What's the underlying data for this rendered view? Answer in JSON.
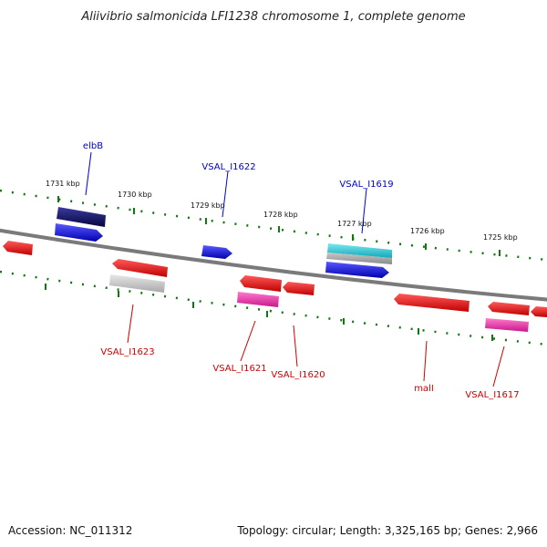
{
  "title": "Aliivibrio salmonicida LFI1238 chromosome 1, complete genome",
  "footer": {
    "accession": "Accession: NC_011312",
    "summary": "Topology: circular; Length: 3,325,165 bp; Genes: 2,966"
  },
  "ticks": [
    "1731 kbp",
    "1730 kbp",
    "1729 kbp",
    "1728 kbp",
    "1727 kbp",
    "1726 kbp",
    "1725 kbp"
  ],
  "top_labels": [
    "elbB",
    "VSAL_I1622",
    "VSAL_I1619"
  ],
  "bottom_labels": [
    "VSAL_I1623",
    "VSAL_I1621",
    "VSAL_I1620",
    "malI",
    "VSAL_I1617"
  ],
  "colors": {
    "navy": "#0a0a70",
    "blue": "#0a0aee",
    "cyan": "#22c8d8",
    "red": "#ee0a0a",
    "pink": "#ee2aaa",
    "gray": "#c0c0c0",
    "backbone": "#7a7a7a",
    "tickGreen": "#117711",
    "labelBlue": "#0000cc",
    "labelRed": "#cc0000"
  }
}
